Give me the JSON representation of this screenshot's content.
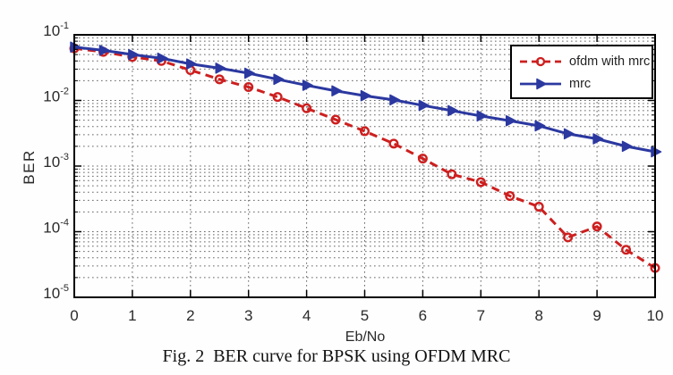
{
  "caption": "Fig. 2  BER curve for BPSK using OFDM MRC",
  "chart_data": {
    "type": "line",
    "title": "",
    "xlabel": "Eb/No",
    "ylabel": "BER",
    "x_scale": "linear",
    "y_scale": "log",
    "xlim": [
      0,
      10
    ],
    "ylog_exponent_range": [
      -5,
      -1
    ],
    "x_tick_labels": [
      "0",
      "1",
      "2",
      "3",
      "4",
      "5",
      "6",
      "7",
      "8",
      "9",
      "10"
    ],
    "y_tick_exponents": [
      -1,
      -2,
      -3,
      -4,
      -5
    ],
    "grid": "dotted major grid, dotted log minor grid on y",
    "legend_position": "northeast",
    "axis_color": "#000000",
    "grid_color": "#3f3f3f",
    "series": [
      {
        "name": "ofdm with mrc",
        "color": "#cd1f1f",
        "line_style": "dashed",
        "marker": "circle",
        "x": [
          0,
          0.5,
          1,
          1.5,
          2,
          2.5,
          3,
          3.5,
          4,
          4.5,
          5,
          5.5,
          6,
          6.5,
          7,
          7.5,
          8,
          8.5,
          9,
          9.5,
          10
        ],
        "values": [
          0.062,
          0.055,
          0.046,
          0.04,
          0.029,
          0.021,
          0.016,
          0.0113,
          0.0076,
          0.0051,
          0.0034,
          0.0022,
          0.0013,
          0.00075,
          0.00057,
          0.00035,
          0.00024,
          8.2e-05,
          0.00012,
          5.3e-05,
          2.8e-05
        ]
      },
      {
        "name": "mrc",
        "color": "#2b38a0",
        "line_style": "solid",
        "marker": "triangle-right",
        "x": [
          0,
          0.5,
          1,
          1.5,
          2,
          2.5,
          3,
          3.5,
          4,
          4.5,
          5,
          5.5,
          6,
          6.5,
          7,
          7.5,
          8,
          8.5,
          9,
          9.5,
          10
        ],
        "values": [
          0.065,
          0.058,
          0.05,
          0.044,
          0.036,
          0.031,
          0.026,
          0.021,
          0.017,
          0.014,
          0.0118,
          0.0102,
          0.0084,
          0.007,
          0.0058,
          0.0049,
          0.0041,
          0.0031,
          0.0026,
          0.002,
          0.00165
        ]
      }
    ]
  }
}
